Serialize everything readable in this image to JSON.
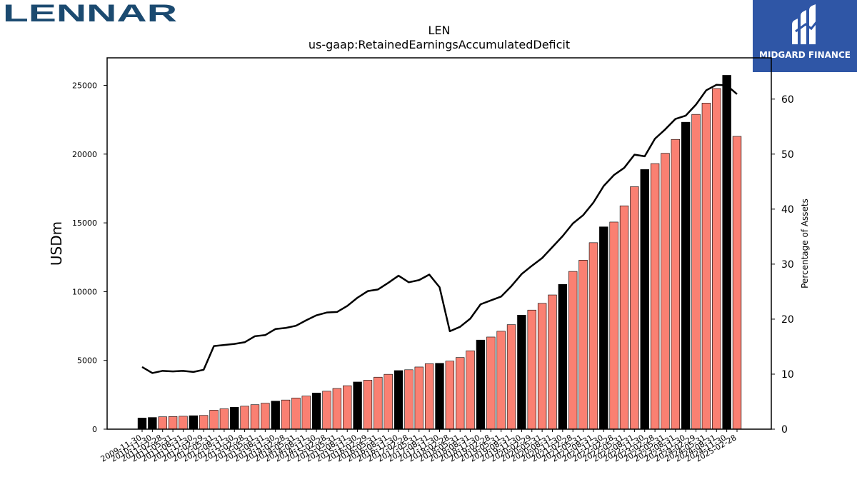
{
  "brand": {
    "logo_text": "LENNAR",
    "badge_text": "MIDGARD FINANCE"
  },
  "chart_data": {
    "type": "bar",
    "title": "LEN",
    "subtitle": "us-gaap:RetainedEarningsAccumulatedDeficit",
    "ylabel": "USDm",
    "y2label": "Percentage of Assets",
    "ylim": [
      0,
      27000
    ],
    "y2lim": [
      0,
      67.5
    ],
    "yticks": [
      0,
      5000,
      10000,
      15000,
      20000,
      25000
    ],
    "y2ticks": [
      0,
      10,
      20,
      30,
      40,
      50,
      60
    ],
    "categories": [
      "2009-11-30",
      "2010-11-30",
      "2011-02-28",
      "2011-05-31",
      "2011-08-31",
      "2011-11-30",
      "2012-02-29",
      "2012-05-31",
      "2012-08-31",
      "2012-11-30",
      "2013-02-28",
      "2013-05-31",
      "2013-08-31",
      "2013-11-30",
      "2014-02-28",
      "2014-05-31",
      "2014-08-31",
      "2014-11-30",
      "2015-02-28",
      "2015-05-31",
      "2015-08-31",
      "2015-11-30",
      "2016-02-29",
      "2016-05-31",
      "2016-08-31",
      "2016-11-30",
      "2017-02-28",
      "2017-05-31",
      "2017-08-31",
      "2017-11-30",
      "2018-02-28",
      "2018-05-31",
      "2018-08-31",
      "2018-11-30",
      "2019-02-28",
      "2019-05-31",
      "2019-08-31",
      "2019-11-30",
      "2020-02-29",
      "2020-05-31",
      "2020-08-31",
      "2020-11-30",
      "2021-02-28",
      "2021-05-31",
      "2021-08-31",
      "2021-11-30",
      "2022-02-28",
      "2022-05-31",
      "2022-08-31",
      "2022-11-30",
      "2023-02-28",
      "2023-05-31",
      "2023-08-31",
      "2023-11-30",
      "2024-02-29",
      "2024-05-31",
      "2024-08-31",
      "2024-11-30",
      "2025-02-28"
    ],
    "fiscal_year_end": [
      true,
      true,
      false,
      false,
      false,
      true,
      false,
      false,
      false,
      true,
      false,
      false,
      false,
      true,
      false,
      false,
      false,
      true,
      false,
      false,
      false,
      true,
      false,
      false,
      false,
      true,
      false,
      false,
      false,
      true,
      false,
      false,
      false,
      true,
      false,
      false,
      false,
      true,
      false,
      false,
      false,
      true,
      false,
      false,
      false,
      true,
      false,
      false,
      false,
      true,
      false,
      false,
      false,
      true,
      false,
      false,
      false,
      true,
      false
    ],
    "series": [
      {
        "name": "",
        "type": "bar",
        "values": [
          810,
          850,
          900,
          920,
          940,
          980,
          1000,
          1380,
          1480,
          1590,
          1670,
          1780,
          1890,
          2040,
          2120,
          2270,
          2410,
          2630,
          2760,
          2960,
          3160,
          3430,
          3560,
          3780,
          3990,
          4260,
          4320,
          4520,
          4760,
          4790,
          4950,
          5210,
          5700,
          6480,
          6700,
          7120,
          7600,
          8290,
          8660,
          9150,
          9760,
          10530,
          11470,
          12290,
          13560,
          14710,
          15060,
          16240,
          17630,
          18880,
          19310,
          20060,
          21070,
          22320,
          22890,
          23710,
          24770,
          25730,
          21290
        ],
        "colors": {
          "fiscal_year_end": "#000000",
          "quarter": "#fa8072",
          "edge": "#000000"
        }
      },
      {
        "name": "",
        "type": "line",
        "axis": "y2",
        "values": [
          11.3,
          10.2,
          10.6,
          10.5,
          10.6,
          10.4,
          10.8,
          15.1,
          15.3,
          15.5,
          15.8,
          16.9,
          17.1,
          18.2,
          18.4,
          18.8,
          19.8,
          20.7,
          21.2,
          21.3,
          22.4,
          23.9,
          25.1,
          25.4,
          26.6,
          27.9,
          26.7,
          27.1,
          28.1,
          25.8,
          17.8,
          18.6,
          20.1,
          22.7,
          23.4,
          24.1,
          26.0,
          28.2,
          29.7,
          31.1,
          33.1,
          35.1,
          37.4,
          38.9,
          41.2,
          44.2,
          46.2,
          47.5,
          49.9,
          49.6,
          52.8,
          54.5,
          56.4,
          57.0,
          59.0,
          61.6,
          62.6,
          62.5,
          60.9
        ],
        "color": "#000000"
      }
    ],
    "grid": false,
    "legend": "none"
  }
}
